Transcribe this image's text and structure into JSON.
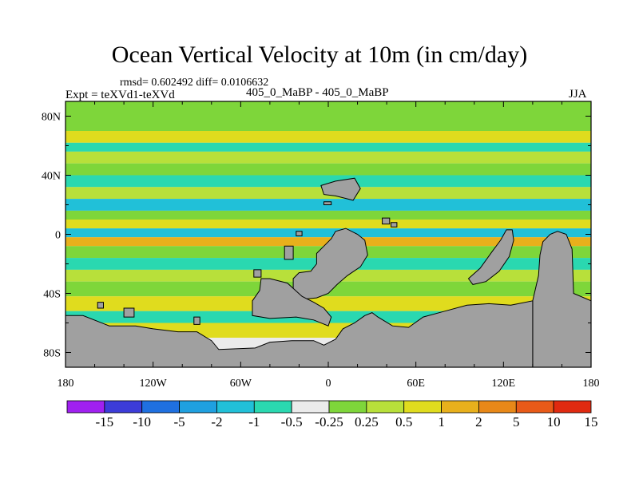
{
  "title": "Ocean Vertical Velocity at 10m (in cm/day)",
  "stats": "rmsd= 0.602492  diff= 0.0106632",
  "left_label": "Expt = teXVd1-teXVd",
  "center_label": "405_0_MaBP - 405_0_MaBP",
  "right_label": "JJA",
  "chart_data": {
    "type": "heatmap",
    "title": "Ocean Vertical Velocity at 10m (in cm/day)",
    "x_range": [
      -180,
      180
    ],
    "y_range": [
      -90,
      90
    ],
    "x_ticks": [
      {
        "value": -180,
        "label": "180"
      },
      {
        "value": -120,
        "label": "120W"
      },
      {
        "value": -60,
        "label": "60W"
      },
      {
        "value": 0,
        "label": "0"
      },
      {
        "value": 60,
        "label": "60E"
      },
      {
        "value": 120,
        "label": "120E"
      },
      {
        "value": 180,
        "label": "180"
      }
    ],
    "y_ticks": [
      {
        "value": 80,
        "label": "80N"
      },
      {
        "value": 40,
        "label": "40N"
      },
      {
        "value": 0,
        "label": "0"
      },
      {
        "value": -40,
        "label": "40S"
      },
      {
        "value": -80,
        "label": "80S"
      }
    ],
    "colorbar": {
      "colors": [
        "#a020f0",
        "#3c3cd8",
        "#1f70e0",
        "#1fa0e0",
        "#21c0d8",
        "#2ad8b0",
        "#ebebeb",
        "#7ed63a",
        "#b8e03a",
        "#e0dc1e",
        "#e8b01c",
        "#e88818",
        "#e85a18",
        "#e02a10"
      ],
      "labels": [
        "-15",
        "-10",
        "-5",
        "-2",
        "-1",
        "-0.5",
        "-0.25",
        "0.25",
        "0.5",
        "1",
        "2",
        "5",
        "10",
        "15"
      ]
    },
    "zonal_bands": [
      {
        "lat_min": 70,
        "lat_max": 90,
        "value": 0
      },
      {
        "lat_min": 62,
        "lat_max": 70,
        "value": 0.6
      },
      {
        "lat_min": 56,
        "lat_max": 62,
        "value": -0.6
      },
      {
        "lat_min": 48,
        "lat_max": 56,
        "value": 0.4
      },
      {
        "lat_min": 40,
        "lat_max": 48,
        "value": 0
      },
      {
        "lat_min": 32,
        "lat_max": 40,
        "value": -0.5
      },
      {
        "lat_min": 24,
        "lat_max": 32,
        "value": 0.5
      },
      {
        "lat_min": 16,
        "lat_max": 24,
        "value": -1
      },
      {
        "lat_min": 10,
        "lat_max": 16,
        "value": 0
      },
      {
        "lat_min": 4,
        "lat_max": 10,
        "value": 0.6
      },
      {
        "lat_min": -2,
        "lat_max": 4,
        "value": -1.5
      },
      {
        "lat_min": -8,
        "lat_max": -2,
        "value": 1.5
      },
      {
        "lat_min": -16,
        "lat_max": -8,
        "value": 0
      },
      {
        "lat_min": -24,
        "lat_max": -16,
        "value": -0.6
      },
      {
        "lat_min": -32,
        "lat_max": -24,
        "value": 0.4
      },
      {
        "lat_min": -42,
        "lat_max": -32,
        "value": 0
      },
      {
        "lat_min": -52,
        "lat_max": -42,
        "value": 0.6
      },
      {
        "lat_min": -60,
        "lat_max": -52,
        "value": -0.6
      },
      {
        "lat_min": -70,
        "lat_max": -60,
        "value": 0.8
      },
      {
        "lat_min": -90,
        "lat_max": -70,
        "value": -0.4
      }
    ],
    "land_color": "#a0a0a0",
    "land_polygons": [
      {
        "name": "northern-continent",
        "points": [
          [
            -5,
            33
          ],
          [
            5,
            36
          ],
          [
            18,
            38
          ],
          [
            22,
            31
          ],
          [
            17,
            23
          ],
          [
            5,
            26
          ],
          [
            -3,
            27
          ]
        ]
      },
      {
        "name": "northern-island-1",
        "points": [
          [
            -3,
            22
          ],
          [
            2,
            22
          ],
          [
            2,
            20
          ],
          [
            -3,
            20
          ]
        ]
      },
      {
        "name": "northern-island-2",
        "points": [
          [
            37,
            11
          ],
          [
            42,
            11
          ],
          [
            42,
            7
          ],
          [
            37,
            7
          ]
        ]
      },
      {
        "name": "northern-island-3",
        "points": [
          [
            43,
            8
          ],
          [
            47,
            8
          ],
          [
            47,
            5
          ],
          [
            43,
            5
          ]
        ]
      },
      {
        "name": "northern-island-4",
        "points": [
          [
            -22,
            2
          ],
          [
            -18,
            2
          ],
          [
            -18,
            -1
          ],
          [
            -22,
            -1
          ]
        ]
      },
      {
        "name": "western-landmass",
        "points": [
          [
            5,
            2
          ],
          [
            12,
            4
          ],
          [
            20,
            0
          ],
          [
            25,
            -4
          ],
          [
            27,
            -14
          ],
          [
            22,
            -22
          ],
          [
            13,
            -28
          ],
          [
            6,
            -34
          ],
          [
            0,
            -40
          ],
          [
            -8,
            -43
          ],
          [
            -18,
            -44
          ],
          [
            -24,
            -40
          ],
          [
            -24,
            -30
          ],
          [
            -20,
            -26
          ],
          [
            -12,
            -25
          ],
          [
            -8,
            -20
          ],
          [
            -8,
            -13
          ],
          [
            -3,
            -8
          ],
          [
            2,
            -3
          ]
        ]
      },
      {
        "name": "western-island-a",
        "points": [
          [
            -30,
            -8
          ],
          [
            -24,
            -8
          ],
          [
            -24,
            -17
          ],
          [
            -30,
            -17
          ]
        ]
      },
      {
        "name": "western-island-b",
        "points": [
          [
            -51,
            -24
          ],
          [
            -46,
            -24
          ],
          [
            -46,
            -29
          ],
          [
            -51,
            -29
          ]
        ]
      },
      {
        "name": "southern-arc",
        "points": [
          [
            -46,
            -30
          ],
          [
            -40,
            -30
          ],
          [
            -28,
            -33
          ],
          [
            -18,
            -42
          ],
          [
            -10,
            -46
          ],
          [
            -3,
            -50
          ],
          [
            2,
            -56
          ],
          [
            0,
            -62
          ],
          [
            -10,
            -58
          ],
          [
            -22,
            -56
          ],
          [
            -40,
            -57
          ],
          [
            -52,
            -55
          ],
          [
            -52,
            -45
          ],
          [
            -47,
            -38
          ]
        ]
      },
      {
        "name": "eastern-peninsula",
        "points": [
          [
            96,
            -30
          ],
          [
            104,
            -23
          ],
          [
            112,
            -12
          ],
          [
            118,
            -4
          ],
          [
            122,
            3
          ],
          [
            126,
            3
          ],
          [
            127,
            -4
          ],
          [
            124,
            -15
          ],
          [
            117,
            -25
          ],
          [
            108,
            -32
          ],
          [
            99,
            -34
          ]
        ]
      },
      {
        "name": "eastern-mountain",
        "points": [
          [
            147,
            -5
          ],
          [
            152,
            0
          ],
          [
            157,
            2
          ],
          [
            163,
            0
          ],
          [
            167,
            -10
          ],
          [
            168,
            -40
          ],
          [
            180,
            -45
          ],
          [
            180,
            -90
          ],
          [
            140,
            -90
          ],
          [
            140,
            -45
          ],
          [
            144,
            -28
          ],
          [
            145,
            -14
          ]
        ]
      },
      {
        "name": "southern-strip",
        "points": [
          [
            -180,
            -55
          ],
          [
            -168,
            -55
          ],
          [
            -150,
            -62
          ],
          [
            -132,
            -62
          ],
          [
            -120,
            -64
          ],
          [
            -103,
            -66
          ],
          [
            -90,
            -66
          ],
          [
            -80,
            -72
          ],
          [
            -75,
            -78
          ],
          [
            -50,
            -77
          ],
          [
            -40,
            -73
          ],
          [
            -25,
            -72
          ],
          [
            -10,
            -72
          ],
          [
            -3,
            -75
          ],
          [
            5,
            -71
          ],
          [
            10,
            -64
          ],
          [
            18,
            -60
          ],
          [
            25,
            -55
          ],
          [
            30,
            -53
          ],
          [
            34,
            -56
          ],
          [
            44,
            -62
          ],
          [
            55,
            -63
          ],
          [
            65,
            -56
          ],
          [
            80,
            -52
          ],
          [
            95,
            -48
          ],
          [
            110,
            -47
          ],
          [
            125,
            -48
          ],
          [
            140,
            -45
          ],
          [
            140,
            -90
          ],
          [
            -180,
            -90
          ]
        ]
      },
      {
        "name": "small-island-1",
        "points": [
          [
            -140,
            -50
          ],
          [
            -133,
            -50
          ],
          [
            -133,
            -56
          ],
          [
            -140,
            -56
          ]
        ]
      },
      {
        "name": "small-island-2",
        "points": [
          [
            -92,
            -56
          ],
          [
            -88,
            -56
          ],
          [
            -88,
            -61
          ],
          [
            -92,
            -61
          ]
        ]
      },
      {
        "name": "small-island-3",
        "points": [
          [
            -158,
            -46
          ],
          [
            -154,
            -46
          ],
          [
            -154,
            -50
          ],
          [
            -158,
            -50
          ]
        ]
      }
    ]
  }
}
